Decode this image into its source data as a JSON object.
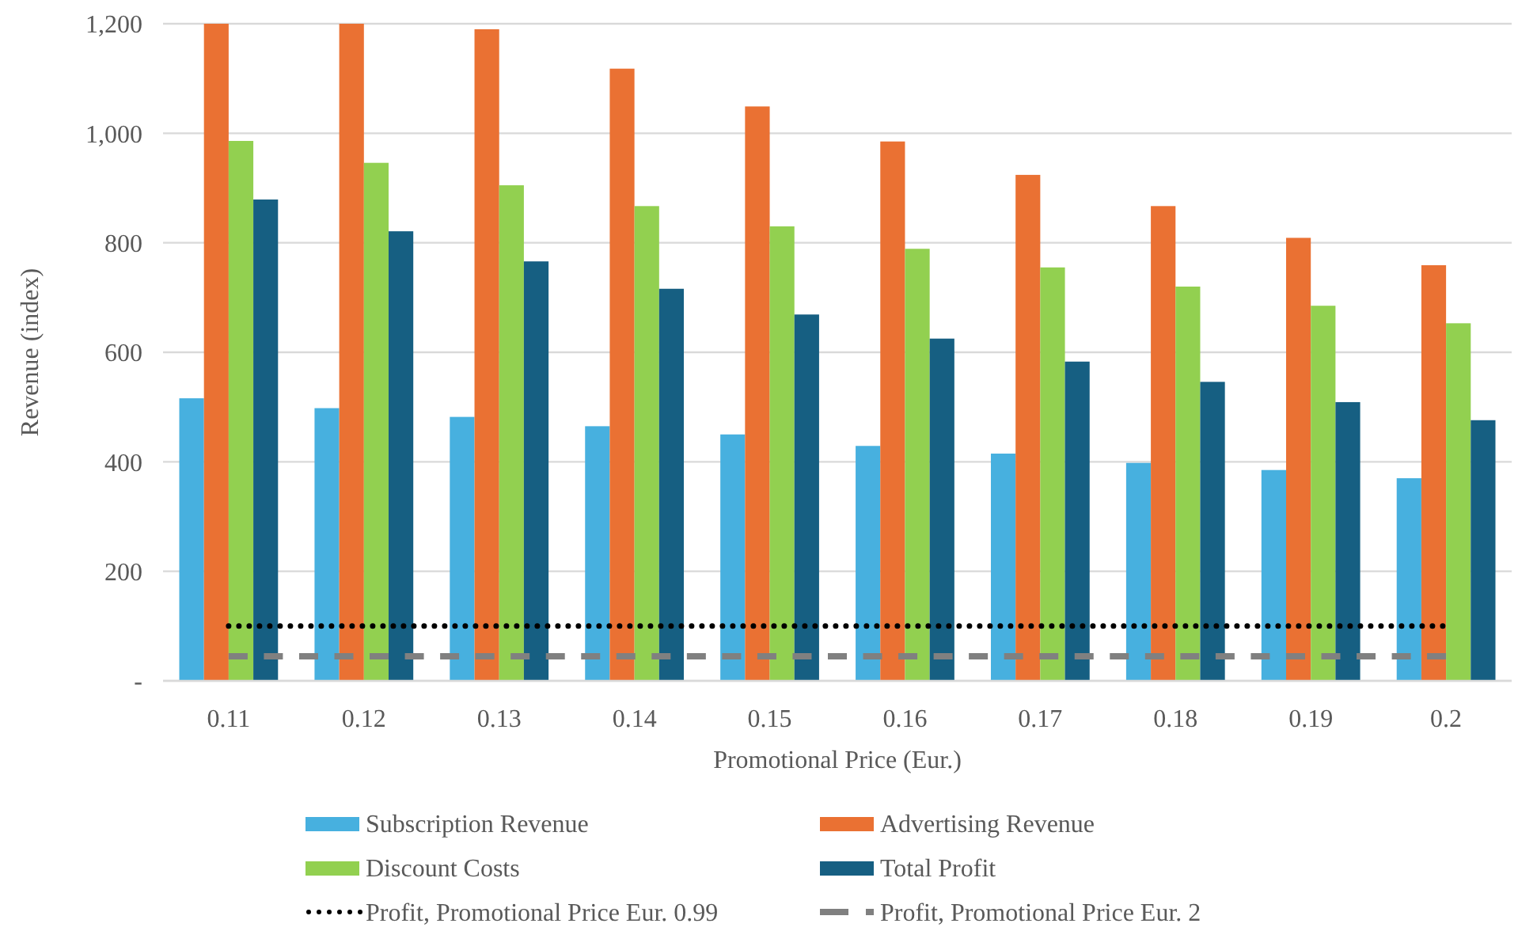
{
  "chart_data": {
    "type": "bar",
    "xlabel": "Promotional Price (Eur.)",
    "ylabel": "Revenue (index)",
    "categories": [
      "0.11",
      "0.12",
      "0.13",
      "0.14",
      "0.15",
      "0.16",
      "0.17",
      "0.18",
      "0.19",
      "0.2"
    ],
    "series": [
      {
        "name": "Subscription Revenue",
        "color": "#47b0df",
        "values": [
          516,
          498,
          482,
          465,
          450,
          429,
          415,
          398,
          385,
          370
        ]
      },
      {
        "name": "Advertising Revenue",
        "color": "#ea7133",
        "values": [
          1200,
          1200,
          1190,
          1118,
          1049,
          985,
          924,
          867,
          809,
          759
        ]
      },
      {
        "name": "Discount Costs",
        "color": "#92d050",
        "values": [
          986,
          946,
          905,
          867,
          830,
          789,
          755,
          720,
          685,
          653
        ]
      },
      {
        "name": "Total Profit",
        "color": "#165f82",
        "values": [
          879,
          821,
          766,
          716,
          669,
          625,
          583,
          546,
          509,
          476
        ]
      },
      {
        "name": "Profit, Promotional Price Eur. 0.99",
        "type": "line",
        "color": "#000000",
        "line_style": "dotted",
        "values": [
          100,
          100,
          100,
          100,
          100,
          100,
          100,
          100,
          100,
          100
        ]
      },
      {
        "name": "Profit, Promotional Price Eur. 2",
        "type": "line",
        "color": "#808080",
        "line_style": "dashed",
        "values": [
          45,
          45,
          45,
          45,
          45,
          45,
          45,
          45,
          45,
          45
        ]
      }
    ],
    "ylim": [
      0,
      1200
    ],
    "yticks": [
      {
        "value": 0,
        "label": "-"
      },
      200,
      400,
      600,
      800,
      {
        "value": 1000,
        "label": "1,000"
      },
      {
        "value": 1200,
        "label": "1,200"
      }
    ],
    "grid": "y",
    "legend": "bottom"
  }
}
